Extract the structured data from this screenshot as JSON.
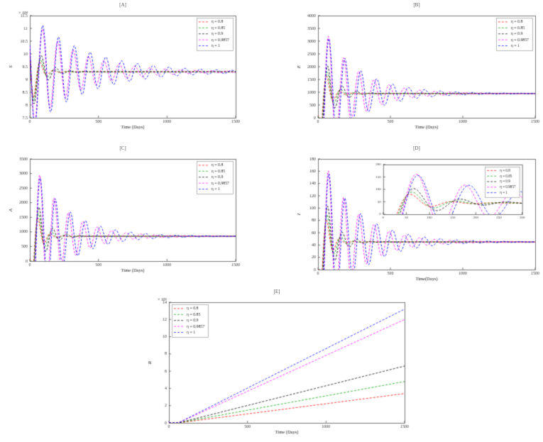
{
  "figure_title": "Epidemic model simulation panels",
  "chart_data": [
    {
      "id": "A",
      "type": "line",
      "title": "[A]",
      "xlabel": "Time (Days)",
      "ylabel": "S",
      "y_scale_label": "× 10⁴",
      "x_range": [
        0,
        1500
      ],
      "x_ticks": [
        0,
        500,
        1000,
        1500
      ],
      "y_range": [
        7.5,
        11.5
      ],
      "y_ticks": [
        7.5,
        8,
        8.5,
        9,
        9.5,
        10,
        10.5,
        11,
        11.5
      ],
      "grid": false,
      "legend": {
        "position": "top-right"
      },
      "equilibrium_note": 9.3,
      "series": [
        {
          "name": "η = 0.8",
          "color": "#ff0000",
          "model": "damped",
          "eq": 9.3,
          "amp": 1.8,
          "decay": 0.021,
          "period": 95,
          "phase": 1.1
        },
        {
          "name": "η = 0.85",
          "color": "#00a000",
          "model": "damped",
          "eq": 9.3,
          "amp": 1.85,
          "decay": 0.017,
          "period": 100,
          "phase": 1.1
        },
        {
          "name": "η = 0.9",
          "color": "#000000",
          "model": "damped",
          "eq": 9.3,
          "amp": 1.9,
          "decay": 0.013,
          "period": 105,
          "phase": 1.1
        },
        {
          "name": "η = 0.9857",
          "color": "#ff00ff",
          "model": "damped",
          "eq": 9.3,
          "amp": 2.2,
          "decay": 0.003,
          "period": 112,
          "phase": 1.1
        },
        {
          "name": "η = 1",
          "color": "#0000ff",
          "model": "damped",
          "eq": 9.3,
          "amp": 2.3,
          "decay": 0.0025,
          "period": 115,
          "phase": 1.1
        }
      ]
    },
    {
      "id": "B",
      "type": "line",
      "title": "[B]",
      "xlabel": "Time (Days)",
      "ylabel": "E",
      "y_scale_label": "",
      "x_range": [
        0,
        1500
      ],
      "x_ticks": [
        0,
        500,
        1000,
        1500
      ],
      "y_range": [
        0,
        4000
      ],
      "y_ticks": [
        0,
        500,
        1000,
        1500,
        2000,
        2500,
        3000,
        3500,
        4000
      ],
      "grid": false,
      "legend": {
        "position": "top-right"
      },
      "equilibrium_note": 950,
      "series": [
        {
          "name": "η = 0.8",
          "color": "#ff0000",
          "model": "damped",
          "eq": 950,
          "amp": 2400,
          "decay": 0.021,
          "period": 90,
          "phase": 1.93
        },
        {
          "name": "η = 0.85",
          "color": "#00a000",
          "model": "damped",
          "eq": 950,
          "amp": 2500,
          "decay": 0.017,
          "period": 95,
          "phase": 1.93
        },
        {
          "name": "η = 0.9",
          "color": "#000000",
          "model": "damped",
          "eq": 950,
          "amp": 2600,
          "decay": 0.013,
          "period": 100,
          "phase": 1.93
        },
        {
          "name": "η = 0.9857",
          "color": "#ff00ff",
          "model": "damped",
          "eq": 950,
          "amp": 3100,
          "decay": 0.0045,
          "period": 105,
          "phase": 1.93
        },
        {
          "name": "η = 1",
          "color": "#0000ff",
          "model": "damped",
          "eq": 950,
          "amp": 2900,
          "decay": 0.004,
          "period": 110,
          "phase": 1.93
        }
      ]
    },
    {
      "id": "C",
      "type": "line",
      "title": "[C]",
      "xlabel": "Time (Days)",
      "ylabel": "A",
      "y_scale_label": "",
      "x_range": [
        0,
        1500
      ],
      "x_ticks": [
        0,
        500,
        1000,
        1500
      ],
      "y_range": [
        0,
        3500
      ],
      "y_ticks": [
        0,
        500,
        1000,
        1500,
        2000,
        2500,
        3000,
        3500
      ],
      "grid": false,
      "legend": {
        "position": "top-right"
      },
      "equilibrium_note": 850,
      "series": [
        {
          "name": "η = 0.8",
          "color": "#ff0000",
          "model": "damped",
          "eq": 850,
          "amp": 2200,
          "decay": 0.021,
          "period": 90,
          "phase": 1.93
        },
        {
          "name": "η = 0.85",
          "color": "#00a000",
          "model": "damped",
          "eq": 850,
          "amp": 2300,
          "decay": 0.017,
          "period": 95,
          "phase": 1.93
        },
        {
          "name": "η = 0.9",
          "color": "#000000",
          "model": "damped",
          "eq": 850,
          "amp": 2400,
          "decay": 0.013,
          "period": 100,
          "phase": 1.93
        },
        {
          "name": "η = 0.9857",
          "color": "#ff00ff",
          "model": "damped",
          "eq": 850,
          "amp": 2900,
          "decay": 0.0045,
          "period": 105,
          "phase": 1.93
        },
        {
          "name": "η = 1",
          "color": "#0000ff",
          "model": "damped",
          "eq": 850,
          "amp": 2700,
          "decay": 0.004,
          "period": 110,
          "phase": 1.93
        }
      ]
    },
    {
      "id": "D",
      "type": "line",
      "title": "[D]",
      "xlabel": "Time(Days)",
      "ylabel": "I",
      "y_scale_label": "",
      "x_range": [
        0,
        1500
      ],
      "x_ticks": [
        0,
        500,
        1000,
        1500
      ],
      "y_range": [
        0,
        180
      ],
      "y_ticks": [
        0,
        20,
        40,
        60,
        80,
        100,
        120,
        140,
        160,
        180
      ],
      "grid": false,
      "legend": {
        "position": "inset"
      },
      "equilibrium_note": 45,
      "inset": {
        "x_range": [
          0,
          300
        ],
        "x_ticks": [
          0,
          50,
          100,
          150,
          200,
          250,
          300
        ],
        "y_range": [
          0,
          200
        ],
        "y_ticks": [
          0,
          50,
          100,
          150,
          200
        ],
        "pos": [
          0.3,
          0.05,
          0.64,
          0.45
        ]
      },
      "series": [
        {
          "name": "η = 0.8",
          "color": "#ff0000",
          "model": "damped",
          "eq": 45,
          "amp": 125,
          "decay": 0.021,
          "period": 90,
          "phase": 1.93
        },
        {
          "name": "η = 0.85",
          "color": "#00a000",
          "model": "damped",
          "eq": 45,
          "amp": 130,
          "decay": 0.017,
          "period": 95,
          "phase": 1.93
        },
        {
          "name": "η = 0.9",
          "color": "#000000",
          "model": "damped",
          "eq": 45,
          "amp": 140,
          "decay": 0.013,
          "period": 100,
          "phase": 1.93
        },
        {
          "name": "η = 0.9857",
          "color": "#ff00ff",
          "model": "damped",
          "eq": 45,
          "amp": 160,
          "decay": 0.0045,
          "period": 105,
          "phase": 1.93
        },
        {
          "name": "η = 1",
          "color": "#0000ff",
          "model": "damped",
          "eq": 45,
          "amp": 150,
          "decay": 0.004,
          "period": 110,
          "phase": 1.93
        }
      ]
    },
    {
      "id": "E",
      "type": "line",
      "title": "[E]",
      "xlabel": "Time (Days)",
      "ylabel": "R",
      "y_scale_label": "× 10⁵",
      "x_range": [
        0,
        1500
      ],
      "x_ticks": [
        0,
        500,
        1000,
        1500
      ],
      "y_range": [
        0,
        14
      ],
      "y_ticks": [
        0,
        2,
        4,
        6,
        8,
        10,
        12,
        14
      ],
      "grid": false,
      "legend": {
        "position": "top-left"
      },
      "end_values_note": {
        "η = 0.8": 3.4,
        "η = 0.85": 4.8,
        "η = 0.9": 6.6,
        "η = 0.9857": 12.0,
        "η = 1": 13.2
      },
      "series": [
        {
          "name": "η = 0.8",
          "color": "#ff0000",
          "model": "linear",
          "slope": 0.00236,
          "t0": 60
        },
        {
          "name": "η = 0.85",
          "color": "#00a000",
          "model": "linear",
          "slope": 0.00333,
          "t0": 60
        },
        {
          "name": "η = 0.9",
          "color": "#000000",
          "model": "linear",
          "slope": 0.00458,
          "t0": 60
        },
        {
          "name": "η = 0.9857",
          "color": "#ff00ff",
          "model": "linear",
          "slope": 0.00833,
          "t0": 60
        },
        {
          "name": "η = 1",
          "color": "#0000ff",
          "model": "linear",
          "slope": 0.00917,
          "t0": 60
        }
      ]
    }
  ]
}
